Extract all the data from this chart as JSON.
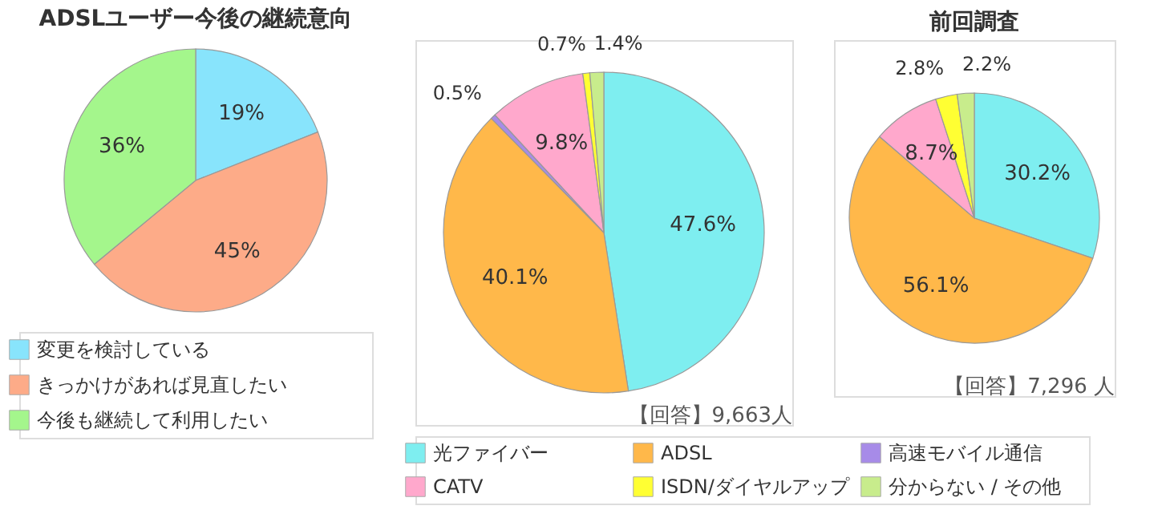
{
  "chart_data": [
    {
      "type": "pie",
      "title": "ADSLユーザー今後の継続意向",
      "categories": [
        "変更を検討している",
        "きっかけがあれば見直したい",
        "今後も継続して利用したい"
      ],
      "values": [
        19,
        45,
        36
      ],
      "value_labels": [
        "19%",
        "45%",
        "36%"
      ],
      "colors": [
        "#88e4fc",
        "#fdab88",
        "#a4f68c"
      ],
      "legend": "bottom"
    },
    {
      "type": "pie",
      "categories": [
        "光ファイバー",
        "ADSL",
        "高速モバイル通信",
        "CATV",
        "ISDN/ダイヤルアップ",
        "分からない / その他"
      ],
      "values": [
        47.6,
        40.1,
        0.5,
        9.8,
        0.7,
        1.4
      ],
      "value_labels": [
        "47.6%",
        "40.1%",
        "0.5%",
        "9.8%",
        "0.7%",
        "1.4%"
      ],
      "colors": [
        "#7eeef0",
        "#ffb84a",
        "#a78be8",
        "#ffa8cc",
        "#ffff33",
        "#c8ec8c"
      ],
      "annotations": [
        "【回答】9,663人"
      ],
      "legend": "bottom"
    },
    {
      "type": "pie",
      "title": "前回調査",
      "values": [
        30.2,
        56.1,
        null,
        8.7,
        2.8,
        2.2
      ],
      "value_labels": [
        "30.2%",
        "56.1%",
        null,
        "8.7%",
        "2.8%",
        "2.2%"
      ],
      "colors": [
        "#7eeef0",
        "#ffb84a",
        "#a78be8",
        "#ffa8cc",
        "#ffff33",
        "#c8ec8c"
      ],
      "annotations": [
        "【回答】7,296 人"
      ]
    }
  ]
}
